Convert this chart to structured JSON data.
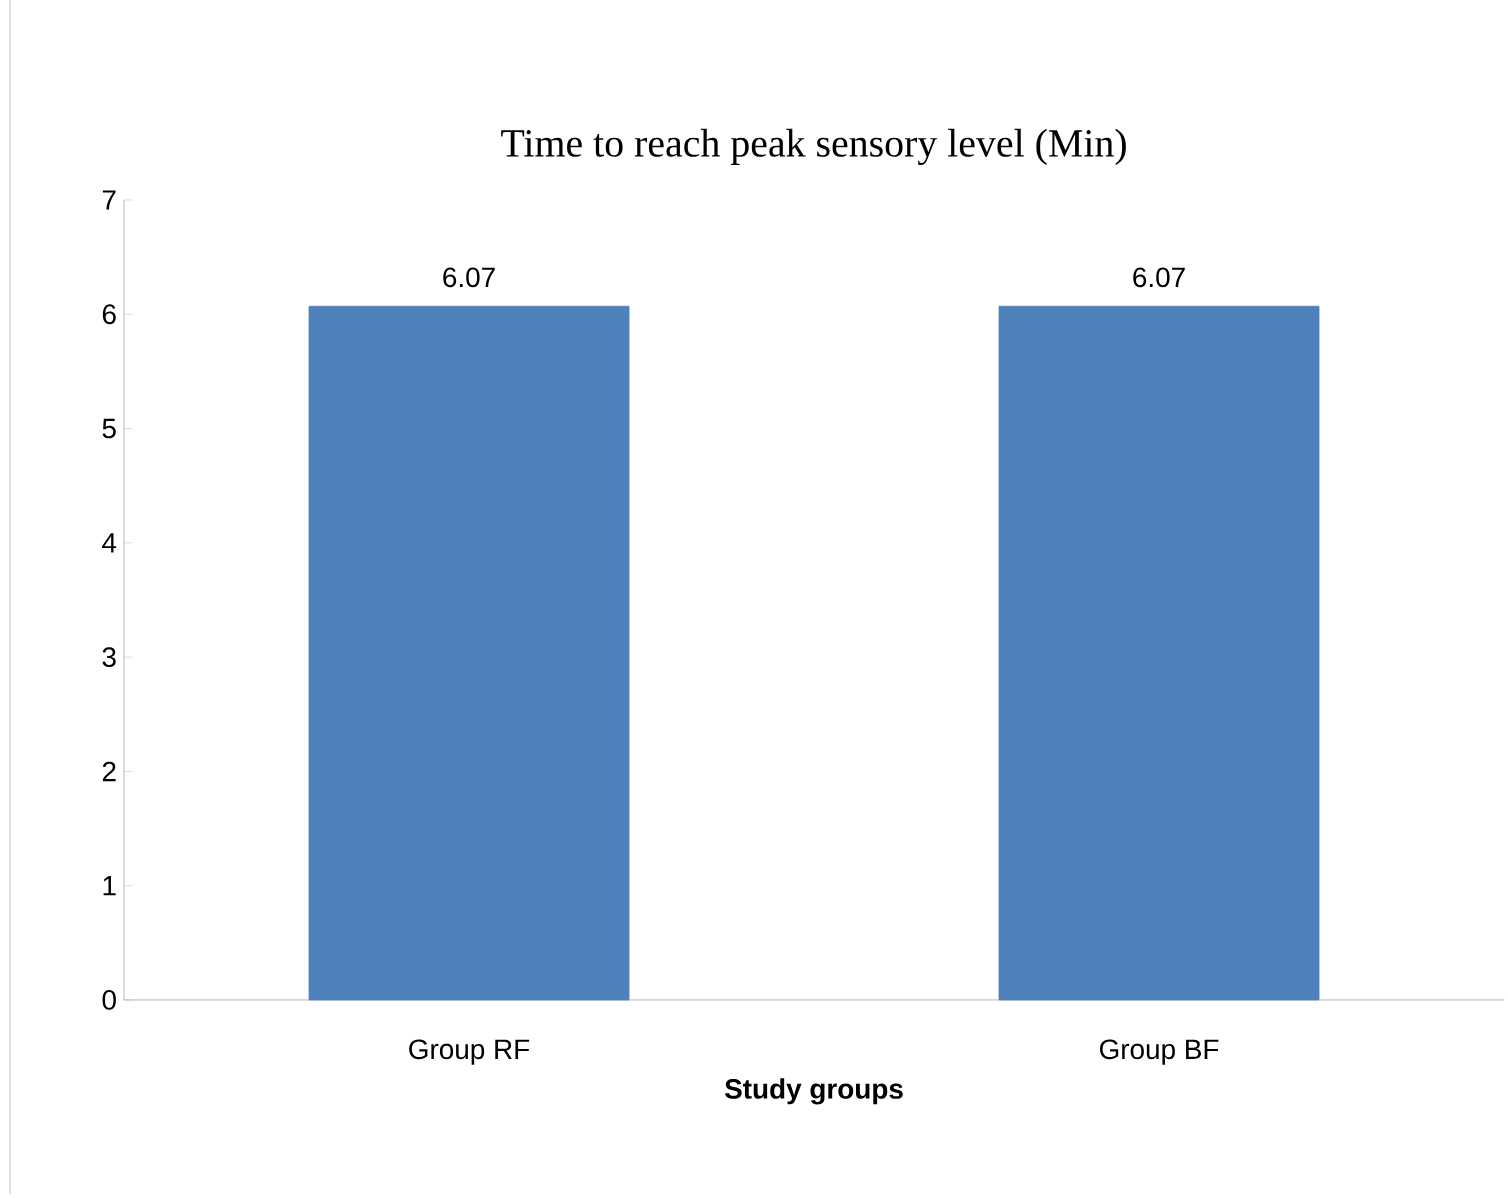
{
  "chart_data": {
    "type": "bar",
    "title": "Time to reach peak sensory level (Min)",
    "xlabel": "Study groups",
    "categories": [
      "Group RF",
      "Group BF"
    ],
    "values": [
      6.07,
      6.07
    ],
    "color": "#4f81bd",
    "ylim": [
      0,
      7
    ],
    "yticks": [
      0,
      1,
      2,
      3,
      4,
      5,
      6,
      7
    ],
    "data_labels": true
  }
}
